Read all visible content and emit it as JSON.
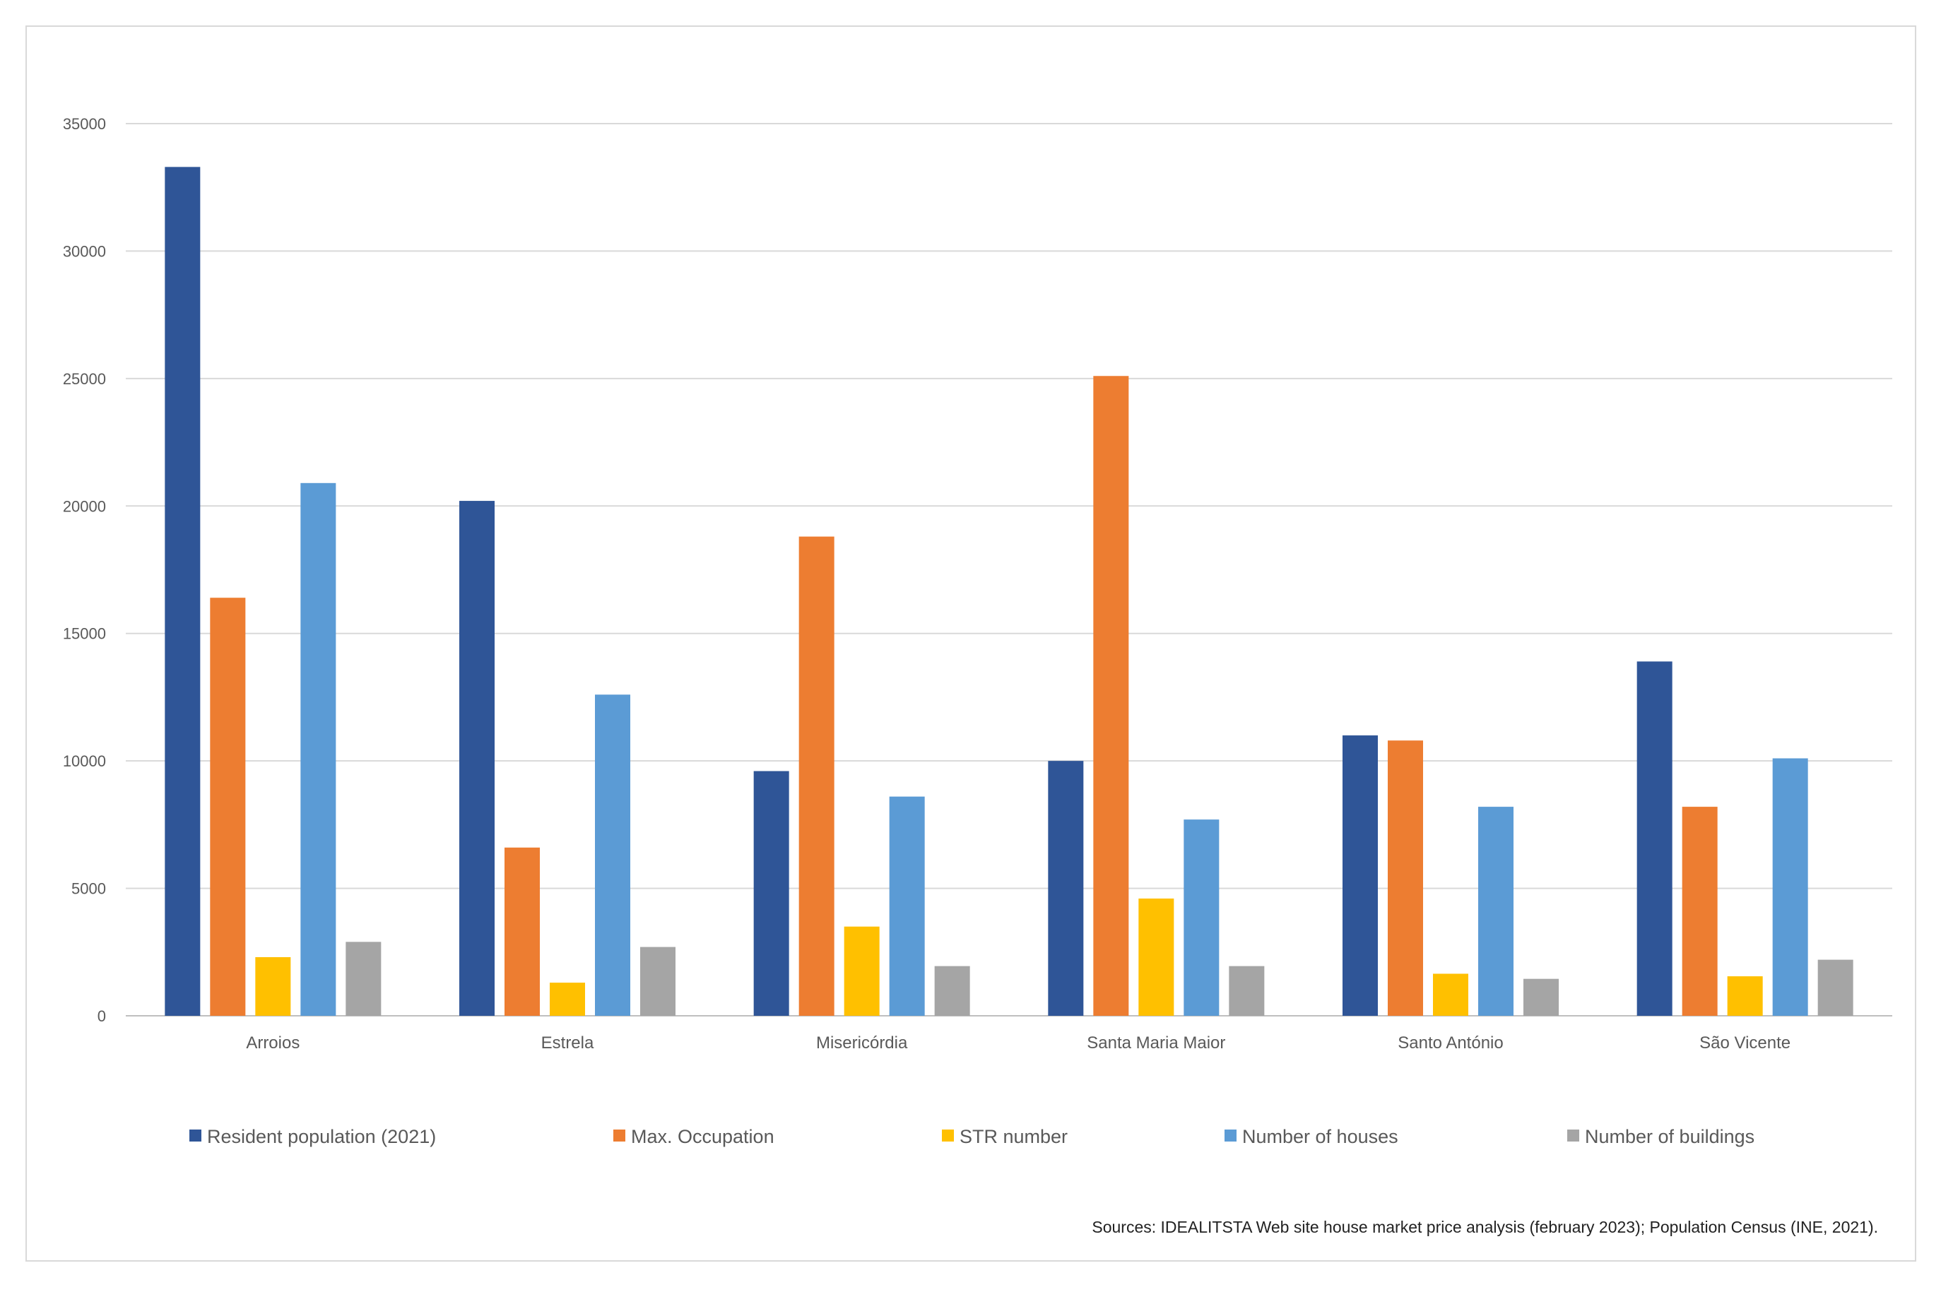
{
  "chart_data": {
    "type": "bar",
    "title": "",
    "xlabel": "",
    "ylabel": "",
    "ylim": [
      0,
      35000
    ],
    "yticks": [
      0,
      5000,
      10000,
      15000,
      20000,
      25000,
      30000,
      35000
    ],
    "grid": true,
    "legend_position": "bottom",
    "categories": [
      "Arroios",
      "Estrela",
      "Misericórdia",
      "Santa Maria Maior",
      "Santo António",
      "São Vicente"
    ],
    "series": [
      {
        "name": "Resident population (2021)",
        "color": "#2F5597",
        "values": [
          33300,
          20200,
          9600,
          10000,
          11000,
          13900
        ]
      },
      {
        "name": "Max. Occupation",
        "color": "#ED7D31",
        "values": [
          16400,
          6600,
          18800,
          25100,
          10800,
          8200
        ]
      },
      {
        "name": "STR number",
        "color": "#FFC000",
        "values": [
          2300,
          1300,
          3500,
          4600,
          1650,
          1550
        ]
      },
      {
        "name": "Number of houses",
        "color": "#5B9BD5",
        "values": [
          20900,
          12600,
          8600,
          7700,
          8200,
          10100
        ]
      },
      {
        "name": "Number of buildings",
        "color": "#A5A5A5",
        "values": [
          2900,
          2700,
          1950,
          1950,
          1450,
          2200
        ]
      }
    ],
    "source": "Sources: IDEALITSTA Web site house market price analysis (february 2023); Population Census (INE, 2021)."
  }
}
